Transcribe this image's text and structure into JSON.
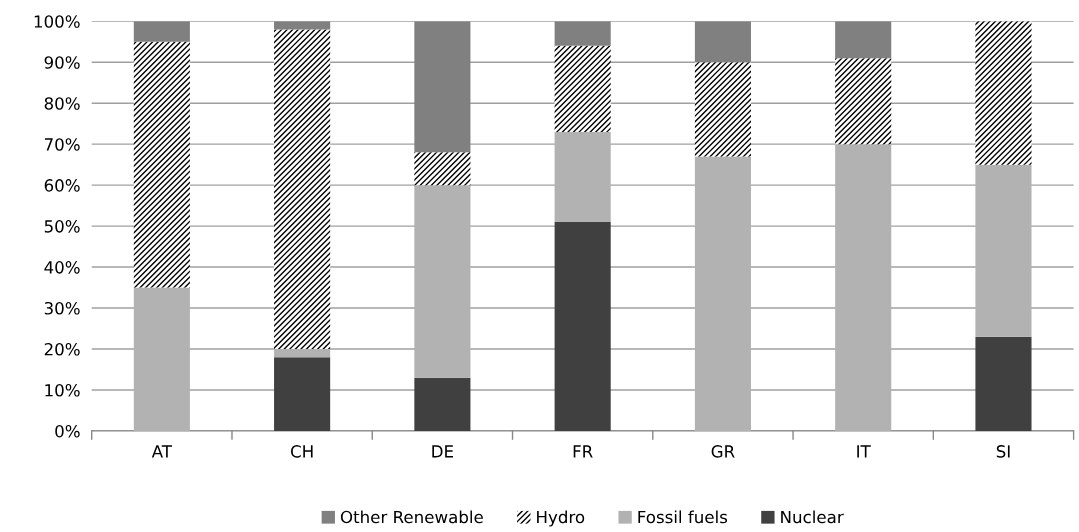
{
  "chart_data": {
    "type": "bar",
    "stacked": true,
    "categories": [
      "AT",
      "CH",
      "DE",
      "FR",
      "GR",
      "IT",
      "SI"
    ],
    "series": [
      {
        "name": "Nuclear",
        "color": "#404040",
        "values": [
          0,
          18,
          13,
          51,
          0,
          0,
          23
        ]
      },
      {
        "name": "Fossil fuels",
        "color": "#b2b2b2",
        "values": [
          35,
          2,
          47,
          22,
          67,
          70,
          42
        ]
      },
      {
        "name": "Hydro",
        "color": "#ffffff",
        "values": [
          60,
          78,
          8,
          21,
          23,
          21,
          35
        ]
      },
      {
        "name": "Other Renewable",
        "color": "#808080",
        "values": [
          5,
          2,
          32,
          6,
          10,
          9,
          0
        ]
      }
    ],
    "ylim": [
      0,
      100
    ],
    "yticks": [
      {
        "value": 0,
        "label": "0%"
      },
      {
        "value": 10,
        "label": "10%"
      },
      {
        "value": 20,
        "label": "20%"
      },
      {
        "value": 30,
        "label": "30%"
      },
      {
        "value": 40,
        "label": "40%"
      },
      {
        "value": 50,
        "label": "50%"
      },
      {
        "value": 60,
        "label": "60%"
      },
      {
        "value": 70,
        "label": "70%"
      },
      {
        "value": 80,
        "label": "80%"
      },
      {
        "value": 90,
        "label": "90%"
      },
      {
        "value": 100,
        "label": "100%"
      }
    ],
    "grid": "y",
    "legend": "bottom"
  }
}
